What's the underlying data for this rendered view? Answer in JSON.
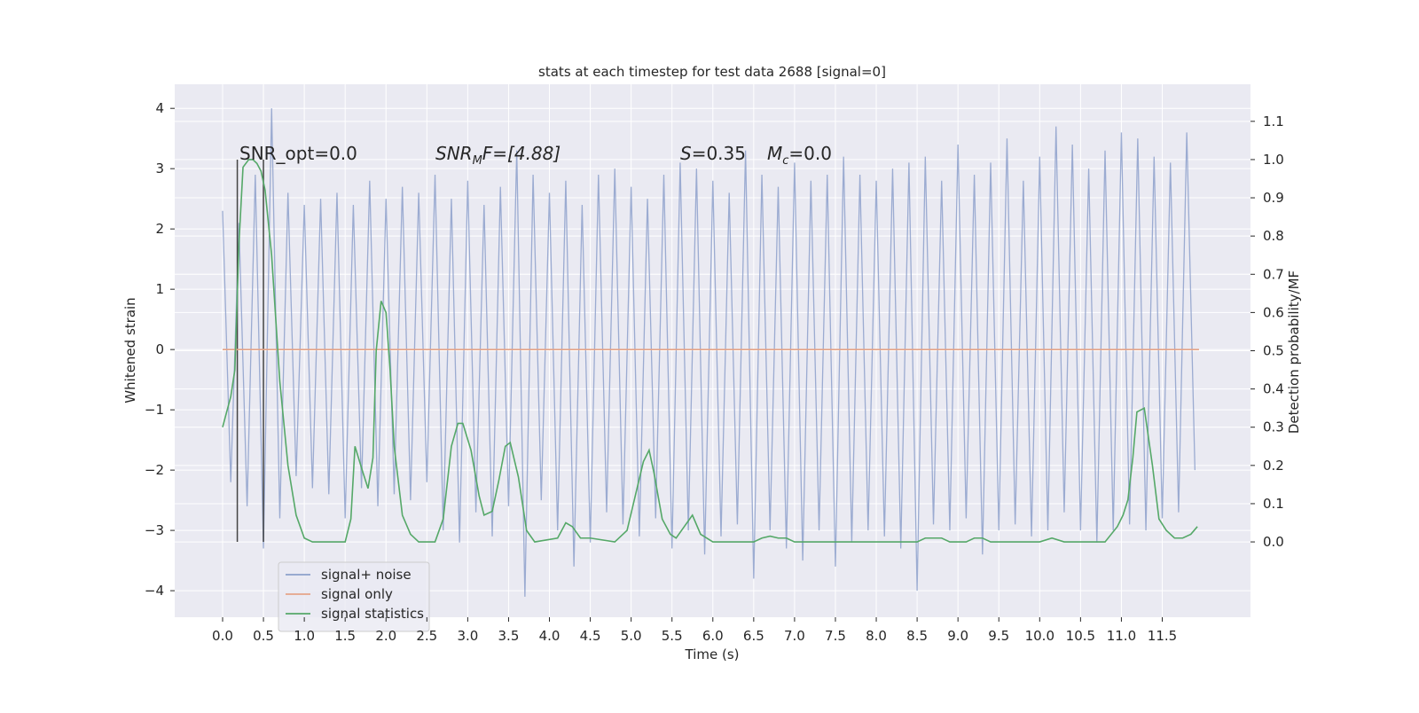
{
  "chart_data": {
    "type": "line",
    "title": "stats at each timestep for test data 2688 [signal=0]",
    "x_label": "Time (s)",
    "y_label": "Whitened strain",
    "y2_label": "Detection probability/MF",
    "xlim": [
      -0.586,
      12.58
    ],
    "ylim": [
      -4.44,
      4.4
    ],
    "y2lim": [
      -0.197,
      1.197
    ],
    "grid": true,
    "legend": "lower left",
    "xticks": [
      {
        "value": 0,
        "label": "0.0"
      },
      {
        "value": 0.5,
        "label": "0.5"
      },
      {
        "value": 1,
        "label": "1.0"
      },
      {
        "value": 1.5,
        "label": "1.5"
      },
      {
        "value": 2,
        "label": "2.0"
      },
      {
        "value": 2.5,
        "label": "2.5"
      },
      {
        "value": 3,
        "label": "3.0"
      },
      {
        "value": 3.5,
        "label": "3.5"
      },
      {
        "value": 4,
        "label": "4.0"
      },
      {
        "value": 4.5,
        "label": "4.5"
      },
      {
        "value": 5,
        "label": "5.0"
      },
      {
        "value": 5.5,
        "label": "5.5"
      },
      {
        "value": 6,
        "label": "6.0"
      },
      {
        "value": 6.5,
        "label": "6.5"
      },
      {
        "value": 7,
        "label": "7.0"
      },
      {
        "value": 7.5,
        "label": "7.5"
      },
      {
        "value": 8,
        "label": "8.0"
      },
      {
        "value": 8.5,
        "label": "8.5"
      },
      {
        "value": 9,
        "label": "9.0"
      },
      {
        "value": 9.5,
        "label": "9.5"
      },
      {
        "value": 10,
        "label": "10.0"
      },
      {
        "value": 10.5,
        "label": "10.5"
      },
      {
        "value": 11,
        "label": "11.0"
      },
      {
        "value": 11.5,
        "label": "11.5"
      }
    ],
    "yticks": [
      {
        "value": -4,
        "label": "−4"
      },
      {
        "value": -3,
        "label": "−3"
      },
      {
        "value": -2,
        "label": "−2"
      },
      {
        "value": -1,
        "label": "−1"
      },
      0,
      1,
      2,
      3,
      4
    ],
    "y2ticks": [
      {
        "value": 0,
        "label": "0.0"
      },
      {
        "value": 0.1,
        "label": "0.1"
      },
      {
        "value": 0.2,
        "label": "0.2"
      },
      {
        "value": 0.3,
        "label": "0.3"
      },
      {
        "value": 0.4,
        "label": "0.4"
      },
      {
        "value": 0.5,
        "label": "0.5"
      },
      {
        "value": 0.6,
        "label": "0.6"
      },
      {
        "value": 0.7,
        "label": "0.7"
      },
      {
        "value": 0.8,
        "label": "0.8"
      },
      {
        "value": 0.9,
        "label": "0.9"
      },
      {
        "value": 1,
        "label": "1.0"
      },
      {
        "value": 1.1,
        "label": "1.1"
      }
    ],
    "series": [
      {
        "name": "signal+ noise",
        "color": "#8da0cb",
        "x": [
          0,
          0.1,
          0.2,
          0.3,
          0.4,
          0.5,
          0.6,
          0.7,
          0.8,
          0.9,
          1,
          1.1,
          1.2,
          1.3,
          1.4,
          1.5,
          1.6,
          1.7,
          1.8,
          1.9,
          2,
          2.1,
          2.2,
          2.3,
          2.4,
          2.5,
          2.6,
          2.7,
          2.8,
          2.9,
          3,
          3.1,
          3.2,
          3.3,
          3.4,
          3.5,
          3.6,
          3.7,
          3.8,
          3.9,
          4,
          4.1,
          4.2,
          4.3,
          4.4,
          4.5,
          4.6,
          4.7,
          4.8,
          4.9,
          5,
          5.1,
          5.2,
          5.3,
          5.4,
          5.5,
          5.6,
          5.7,
          5.8,
          5.9,
          6,
          6.1,
          6.2,
          6.3,
          6.4,
          6.5,
          6.6,
          6.7,
          6.8,
          6.9,
          7,
          7.1,
          7.2,
          7.3,
          7.4,
          7.5,
          7.6,
          7.7,
          7.8,
          7.9,
          8,
          8.1,
          8.2,
          8.3,
          8.4,
          8.5,
          8.6,
          8.7,
          8.8,
          8.9,
          9,
          9.1,
          9.2,
          9.3,
          9.4,
          9.5,
          9.6,
          9.7,
          9.8,
          9.9,
          10,
          10.1,
          10.2,
          10.3,
          10.4,
          10.5,
          10.6,
          10.7,
          10.8,
          10.9,
          11,
          11.1,
          11.2,
          11.3,
          11.4,
          11.5,
          11.6,
          11.7,
          11.8,
          11.9
        ],
        "values": [
          2.3,
          -2.2,
          2.1,
          -2.6,
          2.9,
          -3.3,
          4.0,
          -2.8,
          2.6,
          -2.1,
          2.4,
          -2.3,
          2.5,
          -2.4,
          2.6,
          -2.8,
          2.4,
          -2.3,
          2.8,
          -2.6,
          2.5,
          -2.4,
          2.7,
          -2.5,
          2.6,
          -2.2,
          2.9,
          -3.0,
          2.5,
          -3.2,
          2.8,
          -2.7,
          2.4,
          -3.1,
          2.7,
          -2.6,
          3.3,
          -4.1,
          2.9,
          -2.5,
          2.6,
          -3.0,
          2.8,
          -3.6,
          2.4,
          -3.2,
          2.9,
          -2.7,
          3.0,
          -2.9,
          2.7,
          -3.1,
          2.5,
          -2.8,
          2.9,
          -3.3,
          3.1,
          -3.0,
          3.0,
          -3.4,
          2.8,
          -3.1,
          2.6,
          -2.9,
          3.3,
          -3.8,
          2.9,
          -3.0,
          2.7,
          -3.3,
          3.1,
          -3.5,
          2.8,
          -3.0,
          2.9,
          -3.6,
          3.2,
          -3.2,
          2.9,
          -3.0,
          2.8,
          -3.1,
          3.0,
          -3.3,
          3.1,
          -4.0,
          3.2,
          -2.9,
          2.8,
          -3.0,
          3.4,
          -2.8,
          2.9,
          -3.4,
          3.1,
          -3.0,
          3.5,
          -2.9,
          2.8,
          -3.1,
          3.2,
          -3.0,
          3.7,
          -2.7,
          3.4,
          -3.0,
          3.0,
          -3.2,
          3.3,
          -3.0,
          3.6,
          -2.9,
          3.5,
          -3.0,
          3.2,
          -2.8,
          3.1,
          -2.7,
          3.6,
          -2.0
        ]
      },
      {
        "name": "signal only",
        "color": "#e5a488",
        "x": [
          0,
          11.95
        ],
        "values": [
          0,
          0
        ]
      },
      {
        "name": "signal statistics",
        "color": "#55a868",
        "axis": "y2",
        "x": [
          0,
          0.1,
          0.15,
          0.2,
          0.25,
          0.32,
          0.37,
          0.42,
          0.47,
          0.52,
          0.6,
          0.7,
          0.8,
          0.9,
          1,
          1.1,
          1.3,
          1.5,
          1.57,
          1.62,
          1.72,
          1.78,
          1.84,
          1.88,
          1.94,
          2.0,
          2.05,
          2.1,
          2.2,
          2.3,
          2.4,
          2.6,
          2.7,
          2.8,
          2.88,
          2.94,
          3.04,
          3.14,
          3.2,
          3.3,
          3.38,
          3.46,
          3.52,
          3.62,
          3.72,
          3.82,
          4.1,
          4.2,
          4.28,
          4.38,
          4.5,
          4.8,
          4.95,
          5.05,
          5.15,
          5.22,
          5.28,
          5.38,
          5.48,
          5.55,
          5.65,
          5.75,
          5.85,
          6.0,
          6.5,
          6.6,
          6.7,
          6.8,
          6.9,
          7.0,
          8.5,
          8.6,
          8.8,
          8.9,
          9.1,
          9.2,
          9.3,
          9.4,
          10.0,
          10.15,
          10.3,
          10.8,
          10.95,
          11.02,
          11.08,
          11.14,
          11.19,
          11.28,
          11.38,
          11.46,
          11.55,
          11.65,
          11.75,
          11.85,
          11.93
        ],
        "values": [
          0.3,
          0.38,
          0.45,
          0.78,
          0.98,
          1.0,
          1.0,
          0.99,
          0.97,
          0.92,
          0.75,
          0.42,
          0.2,
          0.07,
          0.01,
          0.0,
          0.0,
          0.0,
          0.06,
          0.25,
          0.18,
          0.14,
          0.22,
          0.5,
          0.63,
          0.6,
          0.45,
          0.25,
          0.07,
          0.02,
          0.0,
          0.0,
          0.06,
          0.25,
          0.31,
          0.31,
          0.24,
          0.12,
          0.07,
          0.08,
          0.16,
          0.25,
          0.26,
          0.17,
          0.03,
          0.0,
          0.01,
          0.05,
          0.04,
          0.01,
          0.01,
          0.0,
          0.03,
          0.12,
          0.21,
          0.24,
          0.18,
          0.06,
          0.02,
          0.01,
          0.04,
          0.07,
          0.02,
          0.0,
          0.0,
          0.01,
          0.015,
          0.01,
          0.01,
          0.0,
          0.0,
          0.01,
          0.01,
          0.0,
          0.0,
          0.01,
          0.01,
          0.0,
          0.0,
          0.01,
          0.0,
          0.0,
          0.04,
          0.07,
          0.11,
          0.22,
          0.34,
          0.35,
          0.2,
          0.06,
          0.03,
          0.01,
          0.01,
          0.02,
          0.04
        ]
      }
    ],
    "vlines": {
      "x": [
        0.18,
        0.5
      ],
      "ymin": -3.19,
      "ymax": 3.15,
      "color": "#444444"
    },
    "annotations": [
      [
        "SNR_opt=0.0"
      ],
      [
        "SNR",
        "M",
        "F=[4.88]"
      ],
      [
        "S",
        "=0.35",
        "M",
        "c",
        "=0.0"
      ]
    ]
  }
}
